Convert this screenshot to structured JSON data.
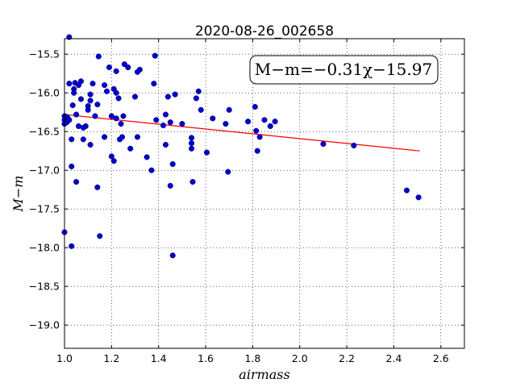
{
  "chart_data": {
    "type": "scatter",
    "title": "2020-08-26_002658",
    "xlabel": "airmass",
    "ylabel": "M−m",
    "xlim": [
      1.0,
      2.7
    ],
    "ylim": [
      -19.3,
      -15.3
    ],
    "y_inverted": true,
    "grid": true,
    "xticks": [
      1.0,
      1.2,
      1.4,
      1.6,
      1.8,
      2.0,
      2.2,
      2.4,
      2.6
    ],
    "xtick_labels": [
      "1.0",
      "1.2",
      "1.4",
      "1.6",
      "1.8",
      "2.0",
      "2.2",
      "2.4",
      "2.6"
    ],
    "yticks": [
      -15.5,
      -16.0,
      -16.5,
      -17.0,
      -17.5,
      -18.0,
      -18.5,
      -19.0
    ],
    "ytick_labels": [
      "−15.5",
      "−16.0",
      "−16.5",
      "−17.0",
      "−17.5",
      "−18.0",
      "−18.5",
      "−19.0"
    ],
    "annotation": "M−m=−0.31χ−15.97",
    "series": [
      {
        "type": "scatter",
        "color": "#0000cc",
        "points": [
          [
            1.0,
            -16.3
          ],
          [
            1.0,
            -16.35
          ],
          [
            1.0,
            -16.4
          ],
          [
            1.0,
            -17.8
          ],
          [
            1.01,
            -16.31
          ],
          [
            1.01,
            -16.35
          ],
          [
            1.01,
            -16.38
          ],
          [
            1.015,
            -16.33
          ],
          [
            1.02,
            -15.28
          ],
          [
            1.02,
            -15.88
          ],
          [
            1.02,
            -16.35
          ],
          [
            1.03,
            -16.6
          ],
          [
            1.03,
            -16.95
          ],
          [
            1.03,
            -17.98
          ],
          [
            1.035,
            -16.16
          ],
          [
            1.04,
            -15.95
          ],
          [
            1.04,
            -16.0
          ],
          [
            1.045,
            -15.87
          ],
          [
            1.05,
            -16.28
          ],
          [
            1.05,
            -17.15
          ],
          [
            1.06,
            -15.9
          ],
          [
            1.06,
            -16.43
          ],
          [
            1.07,
            -15.85
          ],
          [
            1.07,
            -16.08
          ],
          [
            1.08,
            -16.45
          ],
          [
            1.08,
            -16.6
          ],
          [
            1.09,
            -16.43
          ],
          [
            1.1,
            -16.17
          ],
          [
            1.1,
            -16.22
          ],
          [
            1.11,
            -16.1
          ],
          [
            1.11,
            -16.02
          ],
          [
            1.11,
            -16.67
          ],
          [
            1.12,
            -15.88
          ],
          [
            1.13,
            -16.3
          ],
          [
            1.14,
            -16.15
          ],
          [
            1.14,
            -17.22
          ],
          [
            1.145,
            -15.53
          ],
          [
            1.15,
            -17.85
          ],
          [
            1.17,
            -15.9
          ],
          [
            1.17,
            -16.57
          ],
          [
            1.18,
            -15.98
          ],
          [
            1.19,
            -15.67
          ],
          [
            1.2,
            -16.3
          ],
          [
            1.2,
            -16.82
          ],
          [
            1.21,
            -16.88
          ],
          [
            1.21,
            -15.95
          ],
          [
            1.22,
            -16.0
          ],
          [
            1.22,
            -16.33
          ],
          [
            1.22,
            -15.72
          ],
          [
            1.23,
            -16.07
          ],
          [
            1.235,
            -16.6
          ],
          [
            1.24,
            -16.4
          ],
          [
            1.245,
            -16.57
          ],
          [
            1.25,
            -16.3
          ],
          [
            1.255,
            -15.63
          ],
          [
            1.27,
            -15.67
          ],
          [
            1.28,
            -16.72
          ],
          [
            1.3,
            -16.05
          ],
          [
            1.31,
            -16.57
          ],
          [
            1.31,
            -15.73
          ],
          [
            1.32,
            -15.7
          ],
          [
            1.35,
            -16.83
          ],
          [
            1.37,
            -17.0
          ],
          [
            1.38,
            -15.88
          ],
          [
            1.385,
            -15.52
          ],
          [
            1.39,
            -16.35
          ],
          [
            1.42,
            -16.42
          ],
          [
            1.43,
            -16.28
          ],
          [
            1.43,
            -16.67
          ],
          [
            1.44,
            -16.05
          ],
          [
            1.45,
            -16.38
          ],
          [
            1.45,
            -17.2
          ],
          [
            1.46,
            -16.92
          ],
          [
            1.46,
            -18.1
          ],
          [
            1.47,
            -16.02
          ],
          [
            1.5,
            -16.4
          ],
          [
            1.54,
            -16.58
          ],
          [
            1.54,
            -16.65
          ],
          [
            1.54,
            -16.72
          ],
          [
            1.545,
            -17.15
          ],
          [
            1.56,
            -16.07
          ],
          [
            1.57,
            -15.98
          ],
          [
            1.58,
            -16.22
          ],
          [
            1.605,
            -16.77
          ],
          [
            1.63,
            -16.33
          ],
          [
            1.685,
            -16.4
          ],
          [
            1.695,
            -17.02
          ],
          [
            1.7,
            -16.22
          ],
          [
            1.78,
            -16.37
          ],
          [
            1.81,
            -16.18
          ],
          [
            1.815,
            -16.49
          ],
          [
            1.82,
            -16.75
          ],
          [
            1.83,
            -16.57
          ],
          [
            1.85,
            -16.35
          ],
          [
            1.875,
            -16.43
          ],
          [
            1.895,
            -16.37
          ],
          [
            2.1,
            -16.66
          ],
          [
            2.23,
            -16.68
          ],
          [
            2.455,
            -17.26
          ],
          [
            2.505,
            -17.35
          ]
        ]
      },
      {
        "type": "line",
        "color": "#ff0000",
        "points": [
          [
            1.0,
            -16.28
          ],
          [
            2.51,
            -16.75
          ]
        ]
      }
    ]
  }
}
